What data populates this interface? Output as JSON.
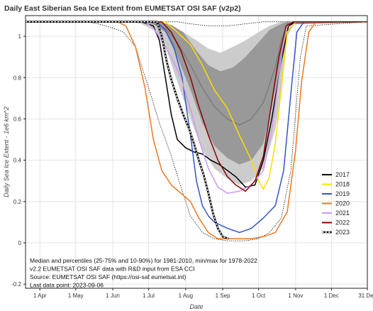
{
  "chart_data": {
    "type": "line",
    "title": "Daily East Siberian Sea Ice Extent from EUMETSAT OSI SAF (v2p2)",
    "xlabel": "Date",
    "ylabel": "Daily Sea Ice Extent - 1e6 km^2",
    "xlim": [
      "2023-03-20",
      "2023-12-31"
    ],
    "ylim": [
      -0.22,
      1.1
    ],
    "x_ticks": [
      {
        "date": "2023-04-01",
        "label": "1 Apr"
      },
      {
        "date": "2023-05-01",
        "label": "1 May"
      },
      {
        "date": "2023-06-01",
        "label": "1 Jun"
      },
      {
        "date": "2023-07-01",
        "label": "1 Jul"
      },
      {
        "date": "2023-08-01",
        "label": "1 Aug"
      },
      {
        "date": "2023-09-01",
        "label": "1 Sep"
      },
      {
        "date": "2023-10-01",
        "label": "1 Oct"
      },
      {
        "date": "2023-11-01",
        "label": "1 Nov"
      },
      {
        "date": "2023-12-01",
        "label": "1 Dec"
      },
      {
        "date": "2023-12-31",
        "label": "31 Dec"
      }
    ],
    "y_ticks": [
      -0.2,
      0,
      0.2,
      0.4,
      0.6,
      0.8,
      1
    ],
    "grid": true,
    "legend_position": "lower-right",
    "bands": {
      "p10_90": {
        "color": "#cccccc",
        "lower": [
          [
            "2023-03-20",
            1.07
          ],
          [
            "2023-06-15",
            1.07
          ],
          [
            "2023-06-25",
            1.06
          ],
          [
            "2023-07-05",
            1.03
          ],
          [
            "2023-07-15",
            0.95
          ],
          [
            "2023-07-25",
            0.78
          ],
          [
            "2023-08-05",
            0.6
          ],
          [
            "2023-08-15",
            0.45
          ],
          [
            "2023-08-25",
            0.36
          ],
          [
            "2023-09-05",
            0.31
          ],
          [
            "2023-09-15",
            0.28
          ],
          [
            "2023-09-25",
            0.3
          ],
          [
            "2023-10-05",
            0.36
          ],
          [
            "2023-10-15",
            0.55
          ],
          [
            "2023-10-20",
            0.72
          ],
          [
            "2023-10-25",
            1.0
          ],
          [
            "2023-11-01",
            1.07
          ],
          [
            "2023-12-31",
            1.07
          ]
        ],
        "upper": [
          [
            "2023-03-20",
            1.07
          ],
          [
            "2023-07-01",
            1.07
          ],
          [
            "2023-07-10",
            1.065
          ],
          [
            "2023-07-20",
            1.05
          ],
          [
            "2023-07-30",
            1.02
          ],
          [
            "2023-08-10",
            0.98
          ],
          [
            "2023-08-20",
            0.94
          ],
          [
            "2023-08-30",
            0.92
          ],
          [
            "2023-09-10",
            0.95
          ],
          [
            "2023-09-20",
            0.98
          ],
          [
            "2023-10-01",
            1.02
          ],
          [
            "2023-10-10",
            1.05
          ],
          [
            "2023-10-20",
            1.07
          ],
          [
            "2023-12-31",
            1.07
          ]
        ]
      },
      "p25_75": {
        "color": "#999999",
        "lower": [
          [
            "2023-03-20",
            1.07
          ],
          [
            "2023-06-25",
            1.07
          ],
          [
            "2023-07-05",
            1.06
          ],
          [
            "2023-07-15",
            1.02
          ],
          [
            "2023-07-25",
            0.9
          ],
          [
            "2023-08-05",
            0.74
          ],
          [
            "2023-08-15",
            0.58
          ],
          [
            "2023-08-25",
            0.47
          ],
          [
            "2023-09-05",
            0.41
          ],
          [
            "2023-09-15",
            0.38
          ],
          [
            "2023-09-25",
            0.4
          ],
          [
            "2023-10-05",
            0.48
          ],
          [
            "2023-10-12",
            0.66
          ],
          [
            "2023-10-20",
            0.9
          ],
          [
            "2023-10-25",
            1.06
          ],
          [
            "2023-12-31",
            1.07
          ]
        ],
        "upper": [
          [
            "2023-03-20",
            1.07
          ],
          [
            "2023-07-10",
            1.07
          ],
          [
            "2023-07-20",
            1.055
          ],
          [
            "2023-07-30",
            1.02
          ],
          [
            "2023-08-10",
            0.93
          ],
          [
            "2023-08-20",
            0.86
          ],
          [
            "2023-08-30",
            0.83
          ],
          [
            "2023-09-10",
            0.85
          ],
          [
            "2023-09-20",
            0.9
          ],
          [
            "2023-10-01",
            0.97
          ],
          [
            "2023-10-10",
            1.03
          ],
          [
            "2023-10-20",
            1.06
          ],
          [
            "2023-10-25",
            1.07
          ],
          [
            "2023-12-31",
            1.07
          ]
        ]
      }
    },
    "median": {
      "color": "#777777",
      "values": [
        [
          "2023-03-20",
          1.07
        ],
        [
          "2023-07-01",
          1.07
        ],
        [
          "2023-07-15",
          1.04
        ],
        [
          "2023-07-25",
          0.97
        ],
        [
          "2023-08-05",
          0.86
        ],
        [
          "2023-08-15",
          0.75
        ],
        [
          "2023-08-25",
          0.66
        ],
        [
          "2023-09-05",
          0.6
        ],
        [
          "2023-09-15",
          0.57
        ],
        [
          "2023-09-25",
          0.6
        ],
        [
          "2023-10-05",
          0.68
        ],
        [
          "2023-10-15",
          0.85
        ],
        [
          "2023-10-20",
          0.98
        ],
        [
          "2023-10-25",
          1.06
        ],
        [
          "2023-12-31",
          1.07
        ]
      ]
    },
    "minmax": {
      "color": "#111111",
      "min": [
        [
          "2023-03-20",
          1.07
        ],
        [
          "2023-05-10",
          1.07
        ],
        [
          "2023-05-20",
          1.06
        ],
        [
          "2023-06-01",
          1.04
        ],
        [
          "2023-06-10",
          1.02
        ],
        [
          "2023-06-20",
          0.95
        ],
        [
          "2023-07-01",
          0.75
        ],
        [
          "2023-07-10",
          0.58
        ],
        [
          "2023-07-20",
          0.42
        ],
        [
          "2023-07-28",
          0.27
        ],
        [
          "2023-08-05",
          0.13
        ],
        [
          "2023-08-15",
          0.05
        ],
        [
          "2023-08-25",
          0.02
        ],
        [
          "2023-09-05",
          0.01
        ],
        [
          "2023-09-20",
          0.01
        ],
        [
          "2023-10-01",
          0.02
        ],
        [
          "2023-10-10",
          0.05
        ],
        [
          "2023-10-20",
          0.12
        ],
        [
          "2023-10-28",
          0.35
        ],
        [
          "2023-11-05",
          0.9
        ],
        [
          "2023-11-10",
          1.05
        ],
        [
          "2023-12-31",
          1.07
        ]
      ],
      "max": [
        [
          "2023-03-20",
          1.07
        ],
        [
          "2023-07-25",
          1.07
        ],
        [
          "2023-08-05",
          1.06
        ],
        [
          "2023-08-20",
          1.05
        ],
        [
          "2023-09-05",
          1.05
        ],
        [
          "2023-09-20",
          1.06
        ],
        [
          "2023-10-05",
          1.07
        ],
        [
          "2023-12-31",
          1.07
        ]
      ]
    },
    "series": [
      {
        "name": "2017",
        "color": "#000000",
        "dashed": false,
        "values": [
          [
            "2023-03-20",
            1.07
          ],
          [
            "2023-06-25",
            1.07
          ],
          [
            "2023-07-05",
            1.05
          ],
          [
            "2023-07-10",
            0.98
          ],
          [
            "2023-07-15",
            0.8
          ],
          [
            "2023-07-20",
            0.62
          ],
          [
            "2023-07-25",
            0.5
          ],
          [
            "2023-08-01",
            0.46
          ],
          [
            "2023-08-08",
            0.44
          ],
          [
            "2023-08-15",
            0.43
          ],
          [
            "2023-08-22",
            0.4
          ],
          [
            "2023-08-29",
            0.38
          ],
          [
            "2023-09-05",
            0.35
          ],
          [
            "2023-09-12",
            0.32
          ],
          [
            "2023-09-20",
            0.27
          ],
          [
            "2023-09-28",
            0.28
          ],
          [
            "2023-10-05",
            0.4
          ],
          [
            "2023-10-12",
            0.6
          ],
          [
            "2023-10-20",
            0.88
          ],
          [
            "2023-10-26",
            1.05
          ],
          [
            "2023-11-01",
            1.07
          ],
          [
            "2023-12-31",
            1.07
          ]
        ]
      },
      {
        "name": "2018",
        "color": "#ffdd00",
        "dashed": false,
        "values": [
          [
            "2023-03-20",
            1.07
          ],
          [
            "2023-07-15",
            1.07
          ],
          [
            "2023-07-25",
            1.02
          ],
          [
            "2023-08-05",
            0.96
          ],
          [
            "2023-08-15",
            0.86
          ],
          [
            "2023-08-25",
            0.74
          ],
          [
            "2023-09-05",
            0.65
          ],
          [
            "2023-09-15",
            0.52
          ],
          [
            "2023-09-25",
            0.4
          ],
          [
            "2023-10-01",
            0.3
          ],
          [
            "2023-10-05",
            0.26
          ],
          [
            "2023-10-10",
            0.32
          ],
          [
            "2023-10-15",
            0.48
          ],
          [
            "2023-10-20",
            0.75
          ],
          [
            "2023-10-25",
            1.02
          ],
          [
            "2023-11-01",
            1.07
          ],
          [
            "2023-12-31",
            1.07
          ]
        ]
      },
      {
        "name": "2019",
        "color": "#3355cc",
        "dashed": false,
        "values": [
          [
            "2023-03-20",
            1.07
          ],
          [
            "2023-07-08",
            1.07
          ],
          [
            "2023-07-15",
            1.03
          ],
          [
            "2023-07-22",
            0.95
          ],
          [
            "2023-07-29",
            0.8
          ],
          [
            "2023-08-05",
            0.52
          ],
          [
            "2023-08-10",
            0.3
          ],
          [
            "2023-08-15",
            0.18
          ],
          [
            "2023-08-20",
            0.13
          ],
          [
            "2023-08-25",
            0.1
          ],
          [
            "2023-09-05",
            0.07
          ],
          [
            "2023-09-15",
            0.05
          ],
          [
            "2023-09-25",
            0.07
          ],
          [
            "2023-10-05",
            0.12
          ],
          [
            "2023-10-15",
            0.18
          ],
          [
            "2023-10-22",
            0.35
          ],
          [
            "2023-10-28",
            0.72
          ],
          [
            "2023-11-02",
            1.02
          ],
          [
            "2023-11-08",
            1.07
          ],
          [
            "2023-12-31",
            1.07
          ]
        ]
      },
      {
        "name": "2020",
        "color": "#ee7722",
        "dashed": false,
        "values": [
          [
            "2023-03-20",
            1.07
          ],
          [
            "2023-06-05",
            1.07
          ],
          [
            "2023-06-12",
            1.05
          ],
          [
            "2023-06-20",
            0.95
          ],
          [
            "2023-06-28",
            0.75
          ],
          [
            "2023-07-05",
            0.5
          ],
          [
            "2023-07-12",
            0.35
          ],
          [
            "2023-07-20",
            0.28
          ],
          [
            "2023-07-28",
            0.24
          ],
          [
            "2023-08-05",
            0.2
          ],
          [
            "2023-08-12",
            0.12
          ],
          [
            "2023-08-20",
            0.05
          ],
          [
            "2023-08-28",
            0.02
          ],
          [
            "2023-09-10",
            0.02
          ],
          [
            "2023-09-25",
            0.02
          ],
          [
            "2023-10-05",
            0.03
          ],
          [
            "2023-10-15",
            0.05
          ],
          [
            "2023-10-25",
            0.15
          ],
          [
            "2023-11-01",
            0.45
          ],
          [
            "2023-11-06",
            0.78
          ],
          [
            "2023-11-12",
            1.02
          ],
          [
            "2023-11-18",
            1.07
          ],
          [
            "2023-12-31",
            1.07
          ]
        ]
      },
      {
        "name": "2021",
        "color": "#cc99ee",
        "dashed": false,
        "values": [
          [
            "2023-03-20",
            1.07
          ],
          [
            "2023-06-28",
            1.07
          ],
          [
            "2023-07-05",
            1.04
          ],
          [
            "2023-07-12",
            0.98
          ],
          [
            "2023-07-20",
            0.9
          ],
          [
            "2023-07-28",
            0.8
          ],
          [
            "2023-08-05",
            0.65
          ],
          [
            "2023-08-12",
            0.5
          ],
          [
            "2023-08-20",
            0.36
          ],
          [
            "2023-08-28",
            0.27
          ],
          [
            "2023-09-05",
            0.24
          ],
          [
            "2023-09-15",
            0.25
          ],
          [
            "2023-09-25",
            0.28
          ],
          [
            "2023-10-05",
            0.35
          ],
          [
            "2023-10-12",
            0.55
          ],
          [
            "2023-10-18",
            0.8
          ],
          [
            "2023-10-23",
            1.03
          ],
          [
            "2023-10-28",
            1.07
          ],
          [
            "2023-12-31",
            1.07
          ]
        ]
      },
      {
        "name": "2022",
        "color": "#8b0000",
        "dashed": false,
        "values": [
          [
            "2023-03-20",
            1.07
          ],
          [
            "2023-07-12",
            1.07
          ],
          [
            "2023-07-20",
            1.02
          ],
          [
            "2023-07-28",
            0.93
          ],
          [
            "2023-08-05",
            0.8
          ],
          [
            "2023-08-12",
            0.66
          ],
          [
            "2023-08-20",
            0.52
          ],
          [
            "2023-08-28",
            0.4
          ],
          [
            "2023-09-05",
            0.32
          ],
          [
            "2023-09-12",
            0.28
          ],
          [
            "2023-09-20",
            0.25
          ],
          [
            "2023-09-28",
            0.3
          ],
          [
            "2023-10-05",
            0.42
          ],
          [
            "2023-10-12",
            0.68
          ],
          [
            "2023-10-18",
            0.9
          ],
          [
            "2023-10-24",
            1.05
          ],
          [
            "2023-10-30",
            1.07
          ],
          [
            "2023-12-31",
            1.07
          ]
        ]
      },
      {
        "name": "2023",
        "color": "#000000",
        "dashed": true,
        "values": [
          [
            "2023-03-20",
            1.07
          ],
          [
            "2023-07-08",
            1.07
          ],
          [
            "2023-07-12",
            1.0
          ],
          [
            "2023-07-16",
            0.88
          ],
          [
            "2023-07-20",
            0.79
          ],
          [
            "2023-07-25",
            0.7
          ],
          [
            "2023-07-30",
            0.62
          ],
          [
            "2023-08-04",
            0.55
          ],
          [
            "2023-08-08",
            0.48
          ],
          [
            "2023-08-12",
            0.4
          ],
          [
            "2023-08-16",
            0.33
          ],
          [
            "2023-08-20",
            0.24
          ],
          [
            "2023-08-24",
            0.14
          ],
          [
            "2023-08-28",
            0.07
          ],
          [
            "2023-09-01",
            0.03
          ],
          [
            "2023-09-06",
            0.02
          ]
        ]
      }
    ],
    "annotations": [
      "Median and percentiles (25-75% and 10-90%) for 1981-2010, min/max for 1978-2022",
      "v2.2 EUMETSAT OSI SAF data with R&D input from ESA CCI",
      "Source: EUMETSAT OSI SAF (https://osi-saf.eumetsat.int)",
      "Last data point: 2023-09-06"
    ]
  }
}
